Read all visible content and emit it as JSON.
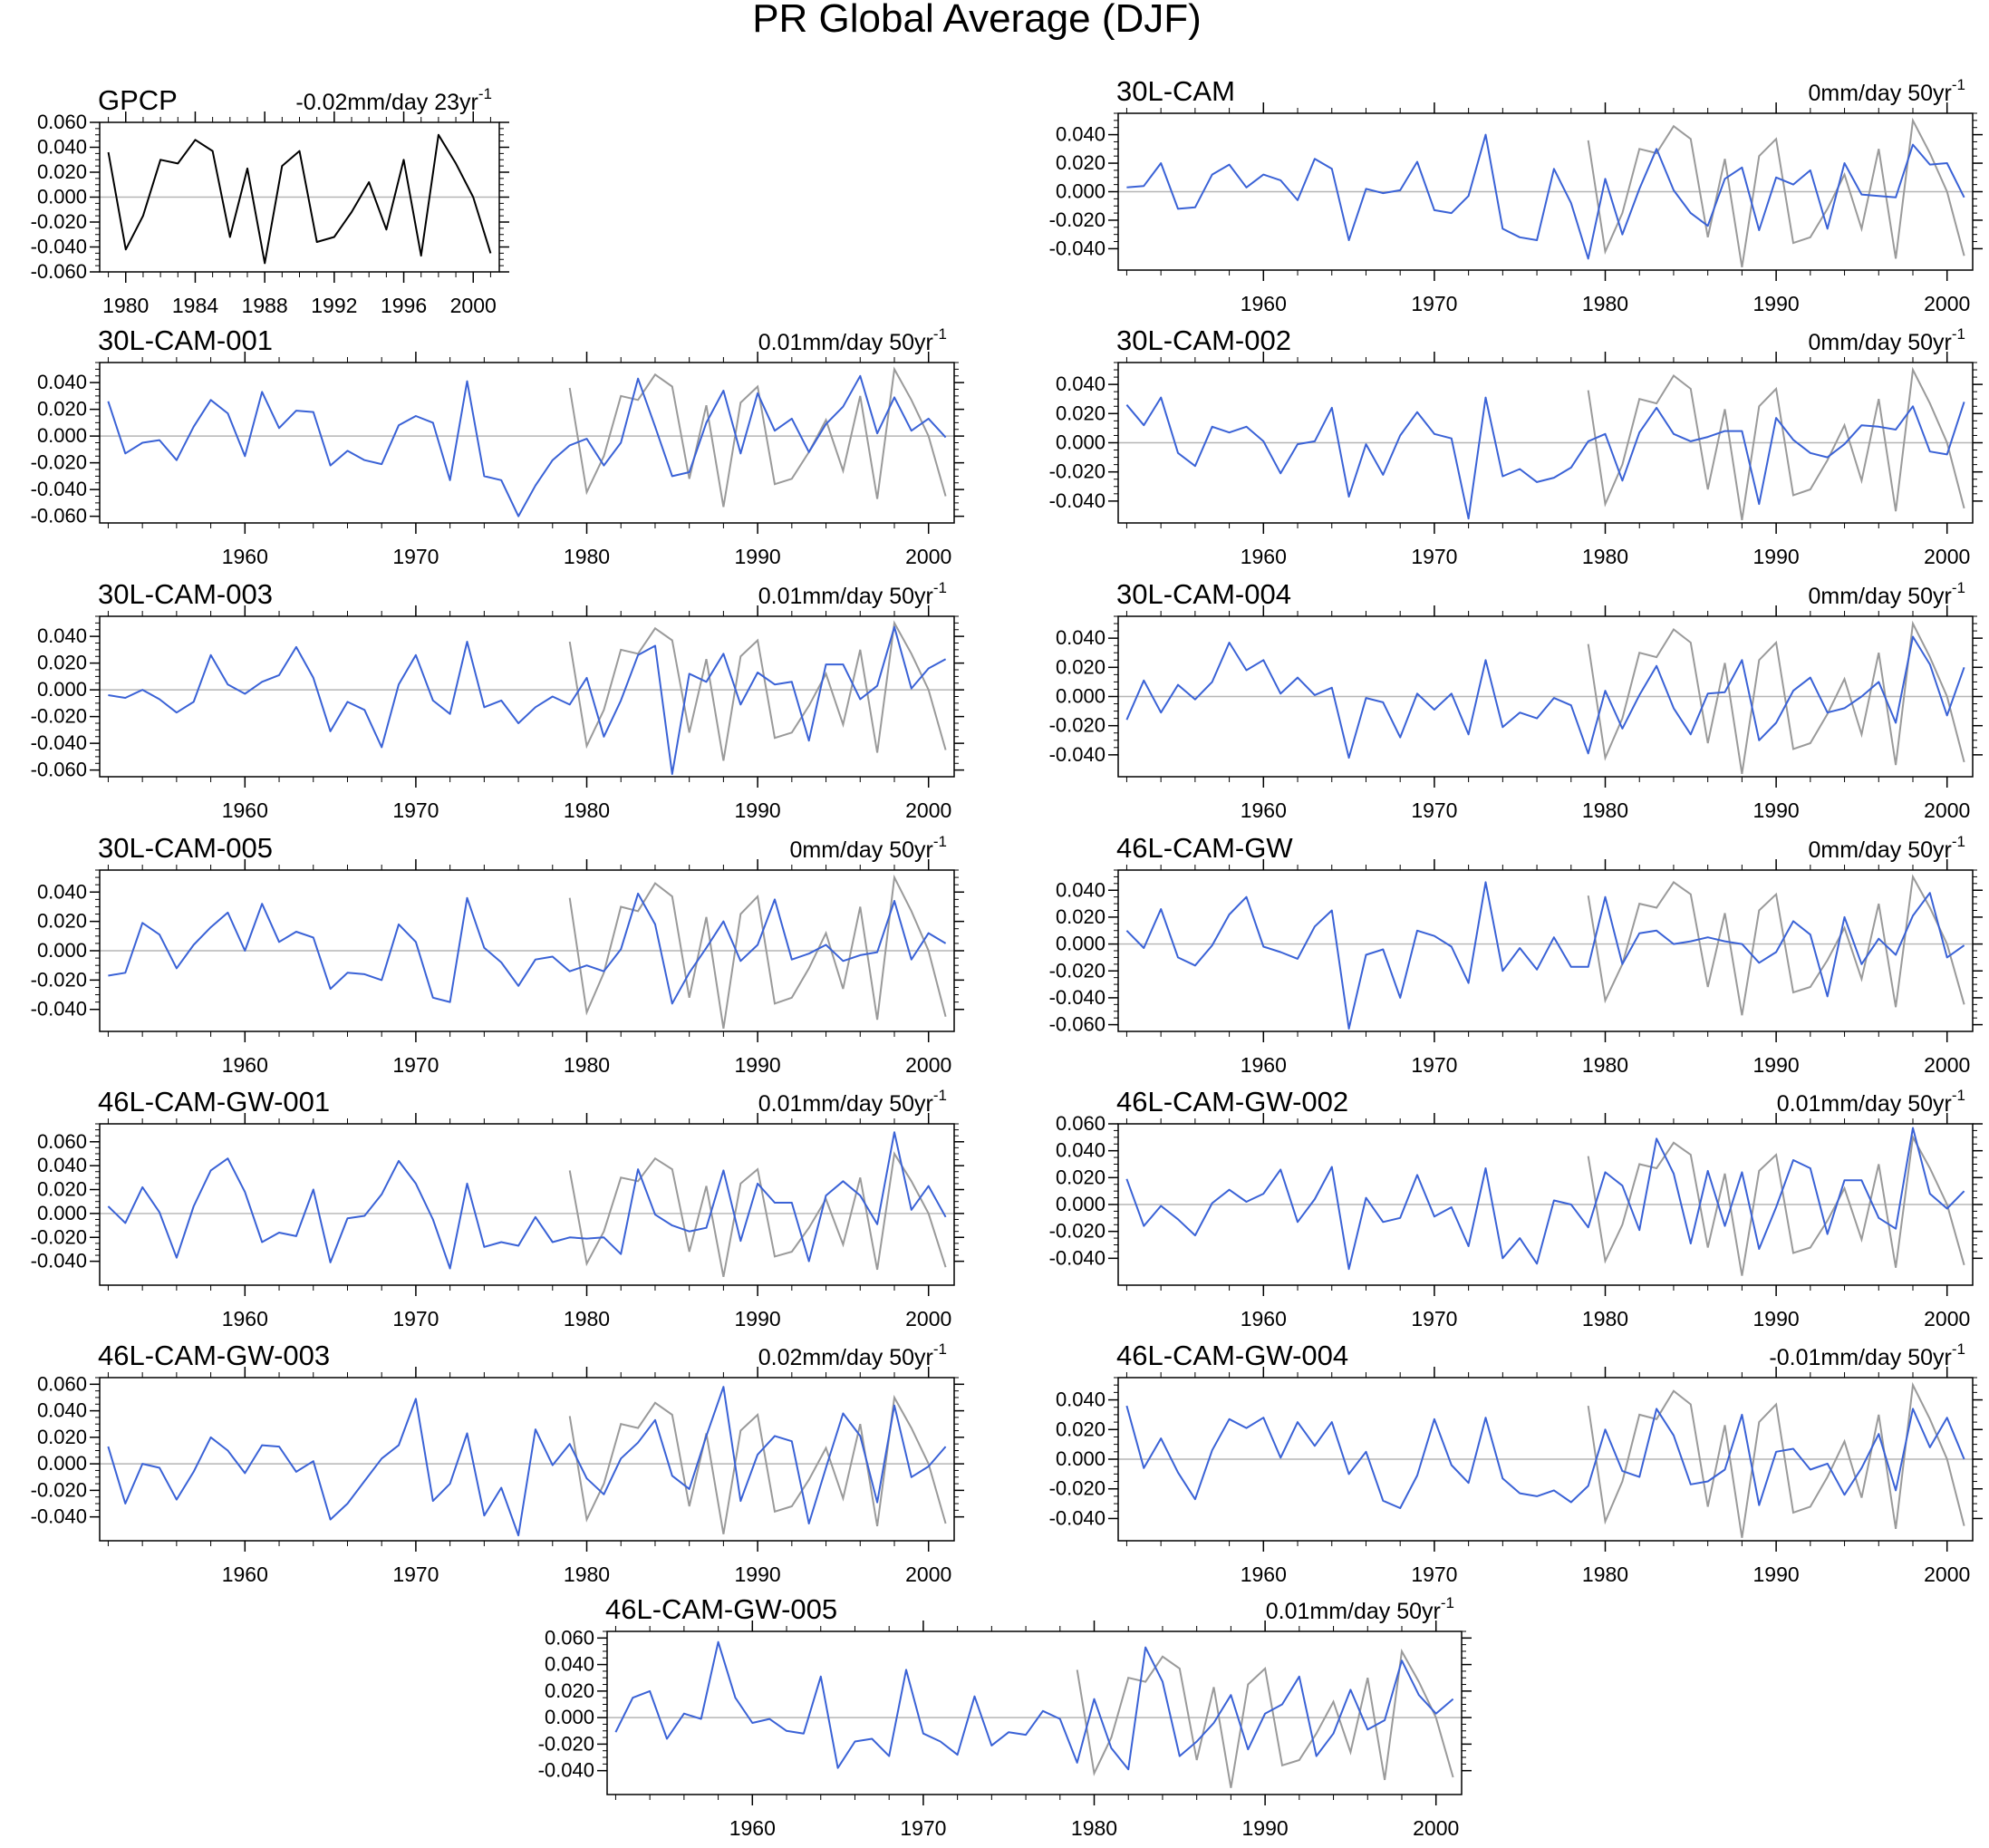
{
  "title": "PR Global Average (DJF)",
  "colors": {
    "model": "#3a62d6",
    "obs": "#000000",
    "obs_overlay": "#9a9a9a",
    "zero_line": "#b5b5b5",
    "frame": "#000000"
  },
  "chart_data": [
    {
      "type": "line",
      "name": "GPCP",
      "trend": "-0.02mm/day 23yr",
      "trend_sup": "-1",
      "xlim": [
        1978.5,
        2001.5
      ],
      "xticks": [
        1980,
        1984,
        1988,
        1992,
        1996,
        2000
      ],
      "ylim": [
        -0.06,
        0.06
      ],
      "yticks": [
        -0.06,
        -0.04,
        -0.02,
        0,
        0.02,
        0.04,
        0.06
      ],
      "x_start": 1979,
      "series": [
        {
          "values": [
            0.036,
            -0.042,
            -0.015,
            0.03,
            0.027,
            0.046,
            0.037,
            -0.032,
            0.023,
            -0.053,
            0.025,
            0.037,
            -0.036,
            -0.032,
            -0.012,
            0.012,
            -0.026,
            0.03,
            -0.047,
            0.05,
            0.027,
            0.0,
            -0.045
          ]
        }
      ]
    },
    {
      "type": "line",
      "name": "30L-CAM",
      "trend": "0mm/day 50yr",
      "trend_sup": "-1",
      "xlim": [
        1951.5,
        2001.5
      ],
      "xticks": [
        1960,
        1970,
        1980,
        1990,
        2000
      ],
      "ylim": [
        -0.055,
        0.055
      ],
      "yticks": [
        -0.04,
        -0.02,
        0,
        0.02,
        0.04
      ],
      "x_start": 1952,
      "series": [
        {
          "values": [
            0.003,
            0.004,
            0.02,
            -0.012,
            -0.011,
            0.012,
            0.019,
            0.003,
            0.012,
            0.008,
            -0.006,
            0.023,
            0.016,
            -0.034,
            0.002,
            -0.001,
            0.001,
            0.021,
            -0.013,
            -0.015,
            -0.003,
            0.04,
            -0.026,
            -0.032,
            -0.034,
            0.016,
            -0.008,
            -0.047,
            0.009,
            -0.03,
            0.002,
            0.03,
            0.001,
            -0.015,
            -0.024,
            0.009,
            0.017,
            -0.027,
            0.01,
            0.005,
            0.015,
            -0.026,
            0.02,
            -0.002,
            -0.003,
            -0.004,
            0.033,
            0.019,
            0.02,
            -0.004
          ]
        }
      ]
    },
    {
      "type": "line",
      "name": "30L-CAM-001",
      "trend": "0.01mm/day 50yr",
      "trend_sup": "-1",
      "xlim": [
        1951.5,
        2001.5
      ],
      "xticks": [
        1960,
        1970,
        1980,
        1990,
        2000
      ],
      "ylim": [
        -0.065,
        0.055
      ],
      "yticks": [
        -0.06,
        -0.04,
        -0.02,
        0,
        0.02,
        0.04
      ],
      "x_start": 1952,
      "series": [
        {
          "values": [
            0.026,
            -0.013,
            -0.005,
            -0.003,
            -0.018,
            0.007,
            0.027,
            0.017,
            -0.015,
            0.033,
            0.006,
            0.019,
            0.018,
            -0.022,
            -0.011,
            -0.018,
            -0.021,
            0.008,
            0.015,
            0.01,
            -0.033,
            0.041,
            -0.03,
            -0.033,
            -0.06,
            -0.037,
            -0.018,
            -0.007,
            -0.002,
            -0.022,
            -0.005,
            0.043,
            0.007,
            -0.03,
            -0.027,
            0.01,
            0.034,
            -0.013,
            0.032,
            0.004,
            0.013,
            -0.012,
            0.009,
            0.022,
            0.045,
            0.002,
            0.029,
            0.004,
            0.013,
            -0.001
          ]
        }
      ]
    },
    {
      "type": "line",
      "name": "30L-CAM-002",
      "trend": "0mm/day 50yr",
      "trend_sup": "-1",
      "xlim": [
        1951.5,
        2001.5
      ],
      "xticks": [
        1960,
        1970,
        1980,
        1990,
        2000
      ],
      "ylim": [
        -0.055,
        0.055
      ],
      "yticks": [
        -0.04,
        -0.02,
        0,
        0.02,
        0.04
      ],
      "x_start": 1952,
      "series": [
        {
          "values": [
            0.026,
            0.012,
            0.031,
            -0.007,
            -0.016,
            0.011,
            0.007,
            0.011,
            0.001,
            -0.021,
            -0.001,
            0.001,
            0.024,
            -0.037,
            -0.001,
            -0.022,
            0.005,
            0.021,
            0.006,
            0.003,
            -0.052,
            0.031,
            -0.023,
            -0.018,
            -0.027,
            -0.024,
            -0.017,
            0.001,
            0.006,
            -0.026,
            0.007,
            0.024,
            0.006,
            0.001,
            0.004,
            0.008,
            0.008,
            -0.042,
            0.017,
            0.002,
            -0.007,
            -0.01,
            -0.001,
            0.012,
            0.011,
            0.009,
            0.025,
            -0.006,
            -0.008,
            0.028
          ]
        }
      ]
    },
    {
      "type": "line",
      "name": "30L-CAM-003",
      "trend": "0.01mm/day 50yr",
      "trend_sup": "-1",
      "xlim": [
        1951.5,
        2001.5
      ],
      "xticks": [
        1960,
        1970,
        1980,
        1990,
        2000
      ],
      "ylim": [
        -0.065,
        0.055
      ],
      "yticks": [
        -0.06,
        -0.04,
        -0.02,
        0,
        0.02,
        0.04
      ],
      "x_start": 1952,
      "series": [
        {
          "values": [
            -0.004,
            -0.006,
            0.0,
            -0.007,
            -0.017,
            -0.009,
            0.026,
            0.004,
            -0.003,
            0.006,
            0.011,
            0.032,
            0.009,
            -0.031,
            -0.009,
            -0.015,
            -0.043,
            0.004,
            0.026,
            -0.008,
            -0.018,
            0.036,
            -0.013,
            -0.008,
            -0.025,
            -0.013,
            -0.005,
            -0.011,
            0.009,
            -0.035,
            -0.008,
            0.026,
            0.033,
            -0.063,
            0.012,
            0.006,
            0.027,
            -0.011,
            0.013,
            0.004,
            0.006,
            -0.038,
            0.019,
            0.019,
            -0.007,
            0.003,
            0.047,
            0.001,
            0.016,
            0.023
          ]
        }
      ]
    },
    {
      "type": "line",
      "name": "30L-CAM-004",
      "trend": "0mm/day 50yr",
      "trend_sup": "-1",
      "xlim": [
        1951.5,
        2001.5
      ],
      "xticks": [
        1960,
        1970,
        1980,
        1990,
        2000
      ],
      "ylim": [
        -0.055,
        0.055
      ],
      "yticks": [
        -0.04,
        -0.02,
        0,
        0.02,
        0.04
      ],
      "x_start": 1952,
      "series": [
        {
          "values": [
            -0.016,
            0.011,
            -0.011,
            0.008,
            -0.002,
            0.01,
            0.037,
            0.018,
            0.025,
            0.002,
            0.013,
            0.001,
            0.006,
            -0.042,
            -0.001,
            -0.004,
            -0.028,
            0.002,
            -0.009,
            0.002,
            -0.026,
            0.025,
            -0.021,
            -0.011,
            -0.015,
            -0.001,
            -0.006,
            -0.039,
            0.004,
            -0.022,
            0.001,
            0.021,
            -0.008,
            -0.026,
            0.002,
            0.003,
            0.025,
            -0.03,
            -0.018,
            0.004,
            0.013,
            -0.011,
            -0.008,
            0.0,
            0.01,
            -0.018,
            0.041,
            0.022,
            -0.013,
            0.02
          ]
        }
      ]
    },
    {
      "type": "line",
      "name": "30L-CAM-005",
      "trend": "0mm/day 50yr",
      "trend_sup": "-1",
      "xlim": [
        1951.5,
        2001.5
      ],
      "xticks": [
        1960,
        1970,
        1980,
        1990,
        2000
      ],
      "ylim": [
        -0.055,
        0.055
      ],
      "yticks": [
        -0.04,
        -0.02,
        0,
        0.02,
        0.04
      ],
      "x_start": 1952,
      "series": [
        {
          "values": [
            -0.017,
            -0.015,
            0.019,
            0.011,
            -0.012,
            0.004,
            0.016,
            0.026,
            0.0,
            0.032,
            0.006,
            0.013,
            0.009,
            -0.026,
            -0.015,
            -0.016,
            -0.02,
            0.018,
            0.006,
            -0.032,
            -0.035,
            0.036,
            0.002,
            -0.008,
            -0.024,
            -0.006,
            -0.004,
            -0.014,
            -0.01,
            -0.014,
            0.001,
            0.039,
            0.018,
            -0.036,
            -0.015,
            0.002,
            0.02,
            -0.007,
            0.004,
            0.035,
            -0.006,
            -0.002,
            0.004,
            -0.007,
            -0.003,
            -0.001,
            0.034,
            -0.006,
            0.012,
            0.005
          ]
        }
      ]
    },
    {
      "type": "line",
      "name": "46L-CAM-GW",
      "trend": "0mm/day 50yr",
      "trend_sup": "-1",
      "xlim": [
        1951.5,
        2001.5
      ],
      "xticks": [
        1960,
        1970,
        1980,
        1990,
        2000
      ],
      "ylim": [
        -0.065,
        0.055
      ],
      "yticks": [
        -0.06,
        -0.04,
        -0.02,
        0,
        0.02,
        0.04
      ],
      "x_start": 1952,
      "series": [
        {
          "values": [
            0.01,
            -0.003,
            0.026,
            -0.01,
            -0.016,
            -0.001,
            0.022,
            0.035,
            -0.002,
            -0.006,
            -0.011,
            0.013,
            0.025,
            -0.063,
            -0.008,
            -0.004,
            -0.04,
            0.01,
            0.006,
            -0.002,
            -0.029,
            0.046,
            -0.02,
            -0.003,
            -0.019,
            0.005,
            -0.017,
            -0.017,
            0.035,
            -0.015,
            0.008,
            0.01,
            0.0,
            0.002,
            0.005,
            0.002,
            0.0,
            -0.014,
            -0.006,
            0.017,
            0.007,
            -0.039,
            0.02,
            -0.015,
            0.004,
            -0.008,
            0.021,
            0.038,
            -0.01,
            -0.001
          ]
        }
      ]
    },
    {
      "type": "line",
      "name": "46L-CAM-GW-001",
      "trend": "0.01mm/day 50yr",
      "trend_sup": "-1",
      "xlim": [
        1951.5,
        2001.5
      ],
      "xticks": [
        1960,
        1970,
        1980,
        1990,
        2000
      ],
      "ylim": [
        -0.06,
        0.075
      ],
      "yticks": [
        -0.04,
        -0.02,
        0,
        0.02,
        0.04,
        0.06
      ],
      "x_start": 1952,
      "series": [
        {
          "values": [
            0.006,
            -0.008,
            0.022,
            0.001,
            -0.037,
            0.006,
            0.036,
            0.046,
            0.018,
            -0.024,
            -0.016,
            -0.019,
            0.02,
            -0.041,
            -0.004,
            -0.002,
            0.016,
            0.044,
            0.025,
            -0.005,
            -0.046,
            0.025,
            -0.028,
            -0.024,
            -0.027,
            -0.003,
            -0.024,
            -0.02,
            -0.021,
            -0.02,
            -0.034,
            0.037,
            -0.001,
            -0.01,
            -0.015,
            -0.012,
            0.036,
            -0.023,
            0.025,
            0.009,
            0.009,
            -0.04,
            0.015,
            0.027,
            0.015,
            -0.009,
            0.068,
            0.003,
            0.023,
            -0.003
          ]
        }
      ]
    },
    {
      "type": "line",
      "name": "46L-CAM-GW-002",
      "trend": "0.01mm/day 50yr",
      "trend_sup": "-1",
      "xlim": [
        1951.5,
        2001.5
      ],
      "xticks": [
        1960,
        1970,
        1980,
        1990,
        2000
      ],
      "ylim": [
        -0.06,
        0.06
      ],
      "yticks": [
        -0.04,
        -0.02,
        0,
        0.02,
        0.04,
        0.06
      ],
      "x_start": 1952,
      "series": [
        {
          "values": [
            0.019,
            -0.016,
            -0.001,
            -0.011,
            -0.023,
            0.001,
            0.011,
            0.002,
            0.008,
            0.026,
            -0.013,
            0.004,
            0.028,
            -0.048,
            0.005,
            -0.013,
            -0.01,
            0.022,
            -0.009,
            -0.002,
            -0.031,
            0.027,
            -0.04,
            -0.025,
            -0.044,
            0.003,
            0.0,
            -0.017,
            0.024,
            0.014,
            -0.019,
            0.049,
            0.023,
            -0.029,
            0.025,
            -0.016,
            0.024,
            -0.033,
            -0.002,
            0.033,
            0.027,
            -0.022,
            0.018,
            0.018,
            -0.01,
            -0.018,
            0.057,
            0.008,
            -0.003,
            0.01
          ]
        }
      ]
    },
    {
      "type": "line",
      "name": "46L-CAM-GW-003",
      "trend": "0.02mm/day 50yr",
      "trend_sup": "-1",
      "xlim": [
        1951.5,
        2001.5
      ],
      "xticks": [
        1960,
        1970,
        1980,
        1990,
        2000
      ],
      "ylim": [
        -0.058,
        0.065
      ],
      "yticks": [
        -0.04,
        -0.02,
        0,
        0.02,
        0.04,
        0.06
      ],
      "x_start": 1952,
      "series": [
        {
          "values": [
            0.013,
            -0.03,
            0.0,
            -0.003,
            -0.027,
            -0.006,
            0.02,
            0.01,
            -0.007,
            0.014,
            0.013,
            -0.006,
            0.002,
            -0.042,
            -0.03,
            -0.013,
            0.004,
            0.014,
            0.049,
            -0.028,
            -0.015,
            0.023,
            -0.039,
            -0.018,
            -0.054,
            0.026,
            -0.001,
            0.015,
            -0.011,
            -0.023,
            0.004,
            0.016,
            0.033,
            -0.009,
            -0.019,
            0.021,
            0.058,
            -0.028,
            0.007,
            0.021,
            0.017,
            -0.045,
            -0.003,
            0.038,
            0.021,
            -0.029,
            0.044,
            -0.01,
            -0.002,
            0.013
          ]
        }
      ]
    },
    {
      "type": "line",
      "name": "46L-CAM-GW-004",
      "trend": "-0.01mm/day 50yr",
      "trend_sup": "-1",
      "xlim": [
        1951.5,
        2001.5
      ],
      "xticks": [
        1960,
        1970,
        1980,
        1990,
        2000
      ],
      "ylim": [
        -0.055,
        0.055
      ],
      "yticks": [
        -0.04,
        -0.02,
        0,
        0.02,
        0.04
      ],
      "x_start": 1952,
      "series": [
        {
          "values": [
            0.036,
            -0.006,
            0.014,
            -0.009,
            -0.027,
            0.006,
            0.027,
            0.021,
            0.028,
            0.001,
            0.025,
            0.009,
            0.025,
            -0.01,
            0.005,
            -0.028,
            -0.033,
            -0.011,
            0.027,
            -0.004,
            -0.016,
            0.028,
            -0.013,
            -0.023,
            -0.025,
            -0.021,
            -0.029,
            -0.018,
            0.02,
            -0.008,
            -0.012,
            0.034,
            0.016,
            -0.017,
            -0.015,
            -0.007,
            0.03,
            -0.031,
            0.005,
            0.007,
            -0.007,
            -0.003,
            -0.024,
            -0.006,
            0.017,
            -0.021,
            0.034,
            0.008,
            0.028,
            0.0
          ]
        }
      ]
    },
    {
      "type": "line",
      "name": "46L-CAM-GW-005",
      "trend": "0.01mm/day 50yr",
      "trend_sup": "-1",
      "xlim": [
        1951.5,
        2001.5
      ],
      "xticks": [
        1960,
        1970,
        1980,
        1990,
        2000
      ],
      "ylim": [
        -0.058,
        0.065
      ],
      "yticks": [
        -0.04,
        -0.02,
        0,
        0.02,
        0.04,
        0.06
      ],
      "x_start": 1952,
      "series": [
        {
          "values": [
            -0.011,
            0.015,
            0.02,
            -0.016,
            0.003,
            -0.001,
            0.057,
            0.015,
            -0.004,
            -0.001,
            -0.01,
            -0.012,
            0.031,
            -0.038,
            -0.018,
            -0.016,
            -0.029,
            0.036,
            -0.012,
            -0.018,
            -0.028,
            0.016,
            -0.021,
            -0.011,
            -0.013,
            0.005,
            -0.001,
            -0.034,
            0.014,
            -0.023,
            -0.039,
            0.053,
            0.027,
            -0.029,
            -0.018,
            -0.004,
            0.017,
            -0.024,
            0.003,
            0.01,
            0.031,
            -0.029,
            -0.012,
            0.021,
            -0.009,
            -0.002,
            0.043,
            0.017,
            0.003,
            0.014
          ]
        }
      ]
    }
  ]
}
